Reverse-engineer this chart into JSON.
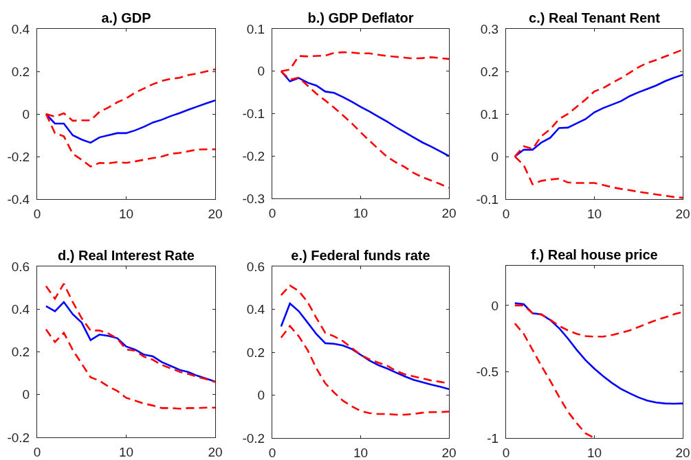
{
  "chart_data": [
    {
      "type": "line",
      "title": "a.) GDP",
      "x": [
        1,
        2,
        3,
        4,
        5,
        6,
        7,
        8,
        9,
        10,
        11,
        12,
        13,
        14,
        15,
        16,
        17,
        18,
        19,
        20
      ],
      "xlim": [
        0,
        20
      ],
      "xticks": [
        0,
        10,
        20
      ],
      "ylim": [
        -0.4,
        0.4
      ],
      "yticks": [
        -0.4,
        -0.2,
        0,
        0.2,
        0.4
      ],
      "series": [
        {
          "color": "#0000ff",
          "line_style": "solid",
          "values": [
            0,
            -0.045,
            -0.045,
            -0.1,
            -0.12,
            -0.135,
            -0.11,
            -0.1,
            -0.09,
            -0.09,
            -0.077,
            -0.06,
            -0.04,
            -0.027,
            -0.01,
            0.004,
            0.02,
            0.035,
            0.05,
            0.064
          ]
        },
        {
          "color": "#ff0000",
          "line_style": "dashed",
          "values": [
            0,
            -0.013,
            0.003,
            -0.032,
            -0.03,
            -0.03,
            0.01,
            0.03,
            0.055,
            0.073,
            0.1,
            0.12,
            0.14,
            0.155,
            0.165,
            0.17,
            0.183,
            0.19,
            0.2,
            0.21
          ]
        },
        {
          "color": "#ff0000",
          "line_style": "dashed",
          "values": [
            0,
            -0.09,
            -0.105,
            -0.187,
            -0.215,
            -0.247,
            -0.23,
            -0.232,
            -0.226,
            -0.23,
            -0.223,
            -0.215,
            -0.207,
            -0.2,
            -0.187,
            -0.183,
            -0.175,
            -0.167,
            -0.166,
            -0.166
          ]
        }
      ]
    },
    {
      "type": "line",
      "title": "b.) GDP Deflator",
      "x": [
        1,
        2,
        3,
        4,
        5,
        6,
        7,
        8,
        9,
        10,
        11,
        12,
        13,
        14,
        15,
        16,
        17,
        18,
        19,
        20
      ],
      "xlim": [
        0,
        20
      ],
      "xticks": [
        0,
        10,
        20
      ],
      "ylim": [
        -0.3,
        0.1
      ],
      "yticks": [
        -0.3,
        -0.2,
        -0.1,
        0,
        0.1
      ],
      "series": [
        {
          "color": "#0000ff",
          "line_style": "solid",
          "values": [
            0,
            -0.024,
            -0.016,
            -0.027,
            -0.034,
            -0.048,
            -0.051,
            -0.061,
            -0.072,
            -0.084,
            -0.095,
            -0.107,
            -0.119,
            -0.132,
            -0.144,
            -0.156,
            -0.168,
            -0.178,
            -0.189,
            -0.2
          ]
        },
        {
          "color": "#ff0000",
          "line_style": "dashed",
          "values": [
            0,
            0.004,
            0.036,
            0.035,
            0.036,
            0.037,
            0.043,
            0.045,
            0.044,
            0.042,
            0.042,
            0.039,
            0.036,
            0.034,
            0.032,
            0.03,
            0.031,
            0.033,
            0.031,
            0.029
          ]
        },
        {
          "color": "#ff0000",
          "line_style": "dashed",
          "values": [
            0,
            -0.02,
            -0.015,
            -0.034,
            -0.053,
            -0.069,
            -0.086,
            -0.104,
            -0.123,
            -0.144,
            -0.164,
            -0.183,
            -0.202,
            -0.215,
            -0.226,
            -0.24,
            -0.25,
            -0.258,
            -0.266,
            -0.275
          ]
        }
      ]
    },
    {
      "type": "line",
      "title": "c.) Real Tenant Rent",
      "x": [
        1,
        2,
        3,
        4,
        5,
        6,
        7,
        8,
        9,
        10,
        11,
        12,
        13,
        14,
        15,
        16,
        17,
        18,
        19,
        20
      ],
      "xlim": [
        0,
        20
      ],
      "xticks": [
        0,
        10,
        20
      ],
      "ylim": [
        -0.1,
        0.3
      ],
      "yticks": [
        -0.1,
        0,
        0.1,
        0.2,
        0.3
      ],
      "series": [
        {
          "color": "#0000ff",
          "line_style": "solid",
          "values": [
            0,
            0.016,
            0.016,
            0.033,
            0.044,
            0.067,
            0.068,
            0.078,
            0.088,
            0.104,
            0.114,
            0.122,
            0.13,
            0.142,
            0.151,
            0.159,
            0.167,
            0.177,
            0.185,
            0.192
          ]
        },
        {
          "color": "#ff0000",
          "line_style": "dashed",
          "values": [
            0,
            0.024,
            0.018,
            0.048,
            0.064,
            0.088,
            0.1,
            0.117,
            0.134,
            0.153,
            0.161,
            0.173,
            0.184,
            0.197,
            0.21,
            0.22,
            0.227,
            0.235,
            0.243,
            0.251
          ]
        },
        {
          "color": "#ff0000",
          "line_style": "dashed",
          "values": [
            0,
            -0.02,
            -0.065,
            -0.057,
            -0.054,
            -0.052,
            -0.061,
            -0.062,
            -0.062,
            -0.062,
            -0.067,
            -0.072,
            -0.076,
            -0.079,
            -0.083,
            -0.086,
            -0.089,
            -0.092,
            -0.095,
            -0.097
          ]
        }
      ]
    },
    {
      "type": "line",
      "title": "d.) Real Interest Rate",
      "x": [
        1,
        2,
        3,
        4,
        5,
        6,
        7,
        8,
        9,
        10,
        11,
        12,
        13,
        14,
        15,
        16,
        17,
        18,
        19,
        20
      ],
      "xlim": [
        0,
        20
      ],
      "xticks": [
        0,
        10,
        20
      ],
      "ylim": [
        -0.2,
        0.6
      ],
      "yticks": [
        -0.2,
        0,
        0.2,
        0.4,
        0.6
      ],
      "series": [
        {
          "color": "#0000ff",
          "line_style": "solid",
          "values": [
            0.414,
            0.39,
            0.433,
            0.376,
            0.337,
            0.255,
            0.281,
            0.275,
            0.264,
            0.225,
            0.211,
            0.187,
            0.179,
            0.152,
            0.134,
            0.116,
            0.105,
            0.088,
            0.075,
            0.061
          ]
        },
        {
          "color": "#ff0000",
          "line_style": "dashed",
          "values": [
            0.508,
            0.449,
            0.519,
            0.433,
            0.358,
            0.3,
            0.3,
            0.286,
            0.262,
            0.211,
            0.206,
            0.177,
            0.163,
            0.139,
            0.123,
            0.107,
            0.096,
            0.083,
            0.072,
            0.059
          ]
        },
        {
          "color": "#ff0000",
          "line_style": "dashed",
          "values": [
            0.305,
            0.246,
            0.289,
            0.209,
            0.145,
            0.081,
            0.065,
            0.038,
            0.017,
            -0.015,
            -0.028,
            -0.042,
            -0.051,
            -0.063,
            -0.063,
            -0.066,
            -0.063,
            -0.063,
            -0.061,
            -0.061
          ]
        }
      ]
    },
    {
      "type": "line",
      "title": "e.) Federal funds rate",
      "x": [
        1,
        2,
        3,
        4,
        5,
        6,
        7,
        8,
        9,
        10,
        11,
        12,
        13,
        14,
        15,
        16,
        17,
        18,
        19,
        20
      ],
      "xlim": [
        0,
        20
      ],
      "xticks": [
        0,
        10,
        20
      ],
      "ylim": [
        -0.2,
        0.6
      ],
      "yticks": [
        -0.2,
        0,
        0.2,
        0.4,
        0.6
      ],
      "series": [
        {
          "color": "#0000ff",
          "line_style": "solid",
          "values": [
            0.32,
            0.427,
            0.391,
            0.338,
            0.284,
            0.242,
            0.239,
            0.231,
            0.215,
            0.188,
            0.161,
            0.14,
            0.124,
            0.105,
            0.087,
            0.071,
            0.06,
            0.049,
            0.039,
            0.028
          ]
        },
        {
          "color": "#ff0000",
          "line_style": "dashed",
          "values": [
            0.466,
            0.511,
            0.485,
            0.434,
            0.359,
            0.29,
            0.274,
            0.252,
            0.22,
            0.188,
            0.167,
            0.151,
            0.137,
            0.113,
            0.097,
            0.087,
            0.078,
            0.068,
            0.062,
            0.055
          ]
        },
        {
          "color": "#ff0000",
          "line_style": "dashed",
          "values": [
            0.268,
            0.322,
            0.274,
            0.21,
            0.124,
            0.055,
            0.012,
            -0.026,
            -0.052,
            -0.074,
            -0.084,
            -0.088,
            -0.088,
            -0.091,
            -0.091,
            -0.088,
            -0.082,
            -0.079,
            -0.079,
            -0.077
          ]
        }
      ]
    },
    {
      "type": "line",
      "title": "f.) Real house price",
      "x": [
        1,
        2,
        3,
        4,
        5,
        6,
        7,
        8,
        9,
        10,
        11,
        12,
        13,
        14,
        15,
        16,
        17,
        18,
        19,
        20
      ],
      "xlim": [
        0,
        20
      ],
      "xticks": [
        0,
        10,
        20
      ],
      "ylim": [
        -1,
        0.3
      ],
      "yticks": [
        -1,
        -0.5,
        0
      ],
      "series": [
        {
          "color": "#0000ff",
          "line_style": "solid",
          "values": [
            0.017,
            0.01,
            -0.059,
            -0.067,
            -0.11,
            -0.171,
            -0.249,
            -0.335,
            -0.413,
            -0.477,
            -0.534,
            -0.585,
            -0.629,
            -0.663,
            -0.694,
            -0.718,
            -0.732,
            -0.739,
            -0.741,
            -0.739
          ]
        },
        {
          "color": "#ff0000",
          "line_style": "dashed",
          "values": [
            0,
            0,
            -0.059,
            -0.069,
            -0.107,
            -0.154,
            -0.188,
            -0.214,
            -0.231,
            -0.235,
            -0.235,
            -0.223,
            -0.206,
            -0.188,
            -0.162,
            -0.136,
            -0.11,
            -0.09,
            -0.067,
            -0.05
          ]
        },
        {
          "color": "#ff0000",
          "line_style": "dashed",
          "values": [
            -0.136,
            -0.214,
            -0.335,
            -0.456,
            -0.568,
            -0.689,
            -0.801,
            -0.888,
            -0.965,
            -1,
            null,
            null,
            null,
            null,
            null,
            null,
            null,
            null,
            null,
            null
          ]
        }
      ]
    }
  ]
}
